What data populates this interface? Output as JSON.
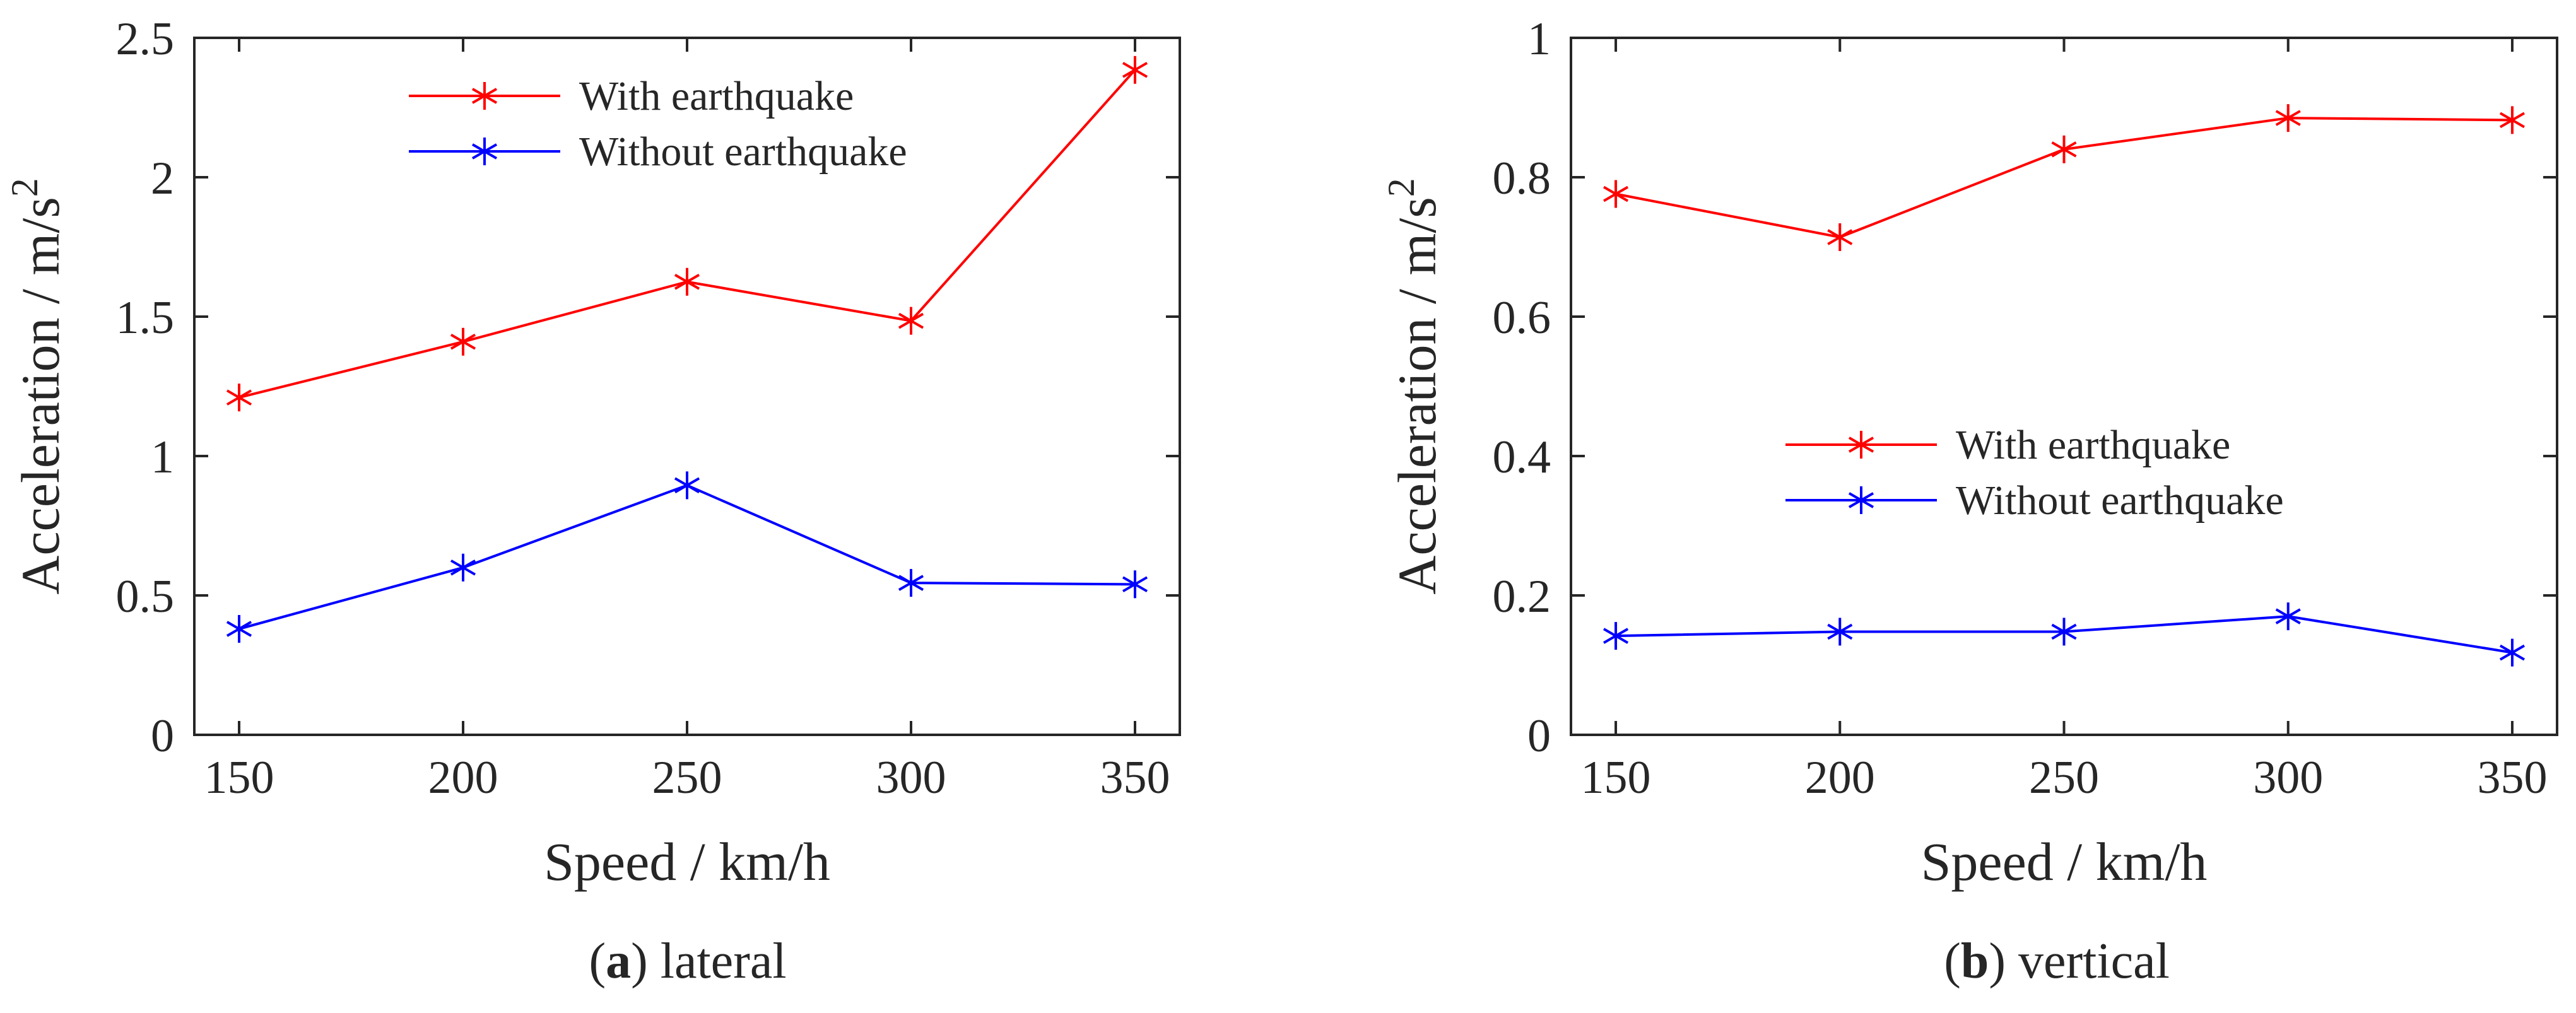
{
  "chart_data": [
    {
      "type": "line",
      "id": "lateral",
      "xlabel": "Speed / km/h",
      "ylabel_main": "Acceleration / m/s",
      "ylabel_sup": "2",
      "x": [
        150,
        200,
        250,
        300,
        350
      ],
      "xlim": [
        140,
        360
      ],
      "ylim": [
        0,
        2.5
      ],
      "xticks": [
        150,
        200,
        250,
        300,
        350
      ],
      "yticks": [
        0,
        0.5,
        1,
        1.5,
        2,
        2.5
      ],
      "ytick_labels": [
        "0",
        "0.5",
        "1",
        "1.5",
        "2",
        "2.5"
      ],
      "legend_position": "top-center",
      "series": [
        {
          "name": "With earthquake",
          "color": "#ff0000",
          "marker": "asterisk",
          "values": [
            1.21,
            1.41,
            1.625,
            1.485,
            2.385
          ]
        },
        {
          "name": "Without earthquake",
          "color": "#0000ff",
          "marker": "asterisk",
          "values": [
            0.38,
            0.6,
            0.895,
            0.545,
            0.54
          ]
        }
      ],
      "caption_letter": "a",
      "caption_text": " lateral"
    },
    {
      "type": "line",
      "id": "vertical",
      "xlabel": "Speed / km/h",
      "ylabel_main": "Acceleration / m/s",
      "ylabel_sup": "2",
      "x": [
        150,
        200,
        250,
        300,
        350
      ],
      "xlim": [
        140,
        360
      ],
      "ylim": [
        0,
        1
      ],
      "xticks": [
        150,
        200,
        250,
        300,
        350
      ],
      "yticks": [
        0,
        0.2,
        0.4,
        0.6,
        0.8,
        1
      ],
      "ytick_labels": [
        "0",
        "0.2",
        "0.4",
        "0.6",
        "0.8",
        "1"
      ],
      "legend_position": "center",
      "series": [
        {
          "name": "With earthquake",
          "color": "#ff0000",
          "marker": "asterisk",
          "values": [
            0.776,
            0.714,
            0.84,
            0.885,
            0.882
          ]
        },
        {
          "name": "Without earthquake",
          "color": "#0000ff",
          "marker": "asterisk",
          "values": [
            0.142,
            0.148,
            0.148,
            0.17,
            0.118
          ]
        }
      ],
      "caption_letter": "b",
      "caption_text": " vertical"
    }
  ]
}
